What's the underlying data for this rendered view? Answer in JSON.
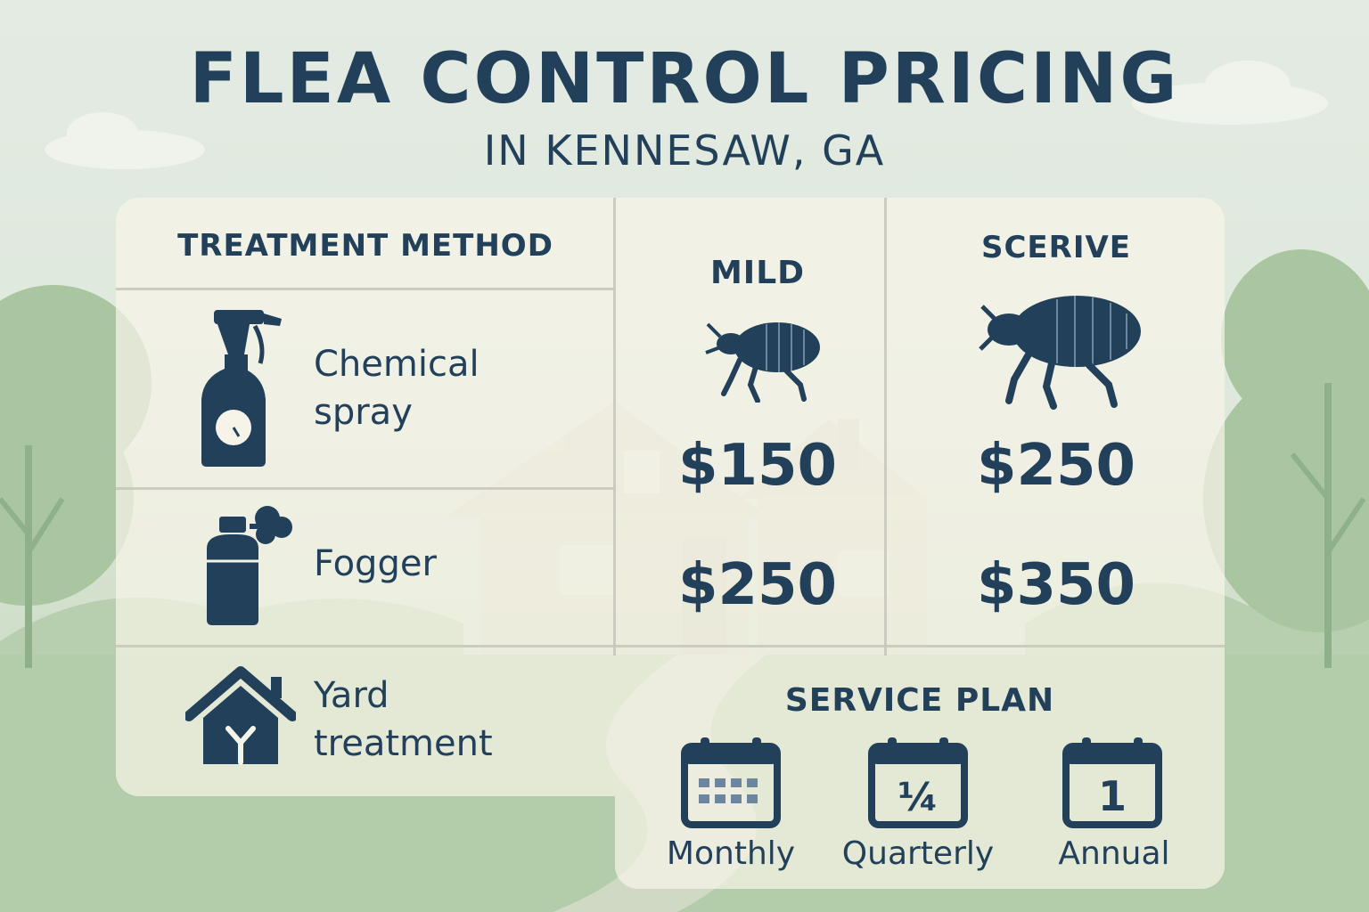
{
  "title": "FLEA CONTROL PRICING",
  "subtitle": "IN KENNESAW, GA",
  "table": {
    "method_header": "TREATMENT METHOD",
    "columns": [
      "MILD",
      "SCERIVE"
    ],
    "rows": [
      {
        "label_line1": "Chemical",
        "label_line2": "spray",
        "icon": "spray-bottle-icon",
        "prices": [
          "$150",
          "$250"
        ]
      },
      {
        "label_line1": "Fogger",
        "label_line2": "",
        "icon": "fogger-can-icon",
        "prices": [
          "$250",
          "$350"
        ]
      },
      {
        "label_line1": "Yard",
        "label_line2": "treatment",
        "icon": "house-yard-icon"
      }
    ]
  },
  "service_plan": {
    "header": "SERVICE PLAN",
    "plans": [
      {
        "label": "Monthly",
        "icon": "calendar-grid-icon"
      },
      {
        "label": "Quarterly",
        "icon": "calendar-quarter-icon",
        "glyph": "¼"
      },
      {
        "label": "Annual",
        "icon": "calendar-one-icon",
        "glyph": "1"
      }
    ]
  },
  "colors": {
    "ink": "#22405a",
    "panel": "#f6f4e8",
    "greenery": "#a9c6a0",
    "sky": "#e3ebe3"
  }
}
